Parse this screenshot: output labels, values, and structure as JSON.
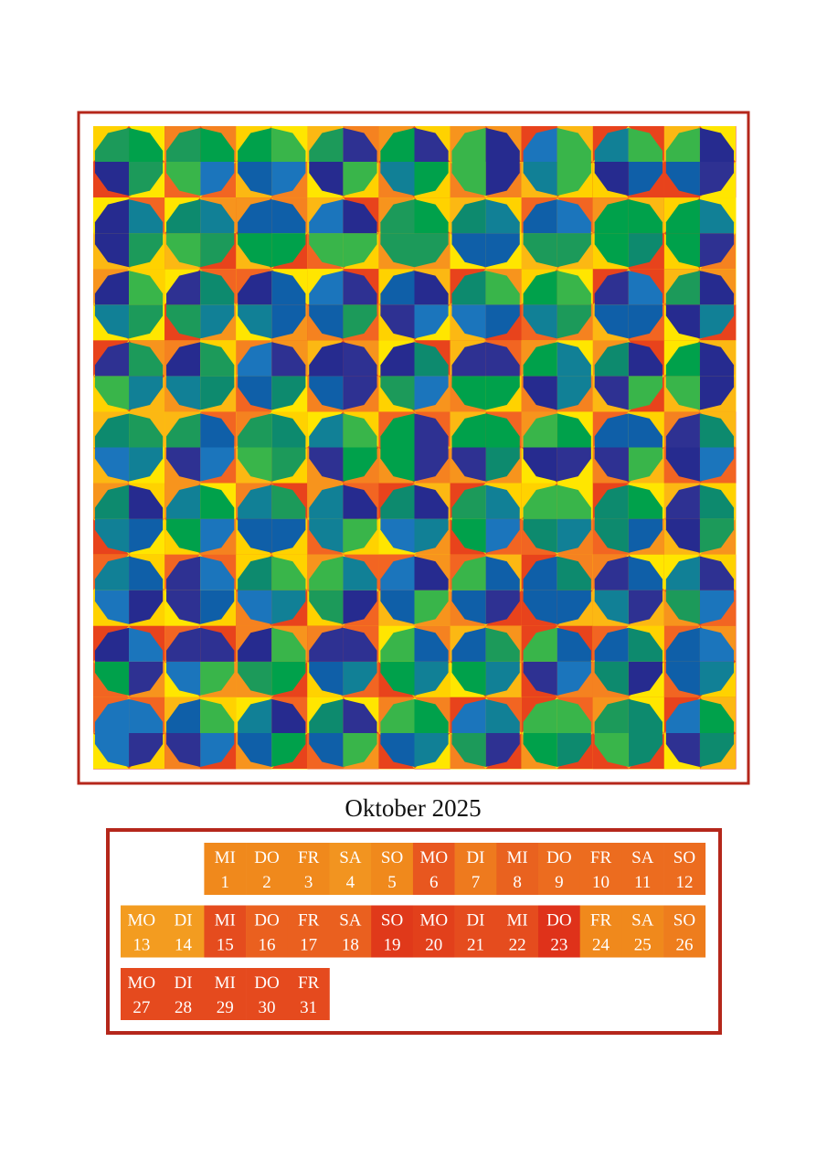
{
  "title": "Oktober 2025",
  "days": [
    {
      "weekday": "MI",
      "day": 1,
      "color": "#f0891c"
    },
    {
      "weekday": "DO",
      "day": 2,
      "color": "#f0891c"
    },
    {
      "weekday": "FR",
      "day": 3,
      "color": "#f0891c"
    },
    {
      "weekday": "SA",
      "day": 4,
      "color": "#f29420"
    },
    {
      "weekday": "SO",
      "day": 5,
      "color": "#f0891c"
    },
    {
      "weekday": "MO",
      "day": 6,
      "color": "#e8571f"
    },
    {
      "weekday": "DI",
      "day": 7,
      "color": "#ee7a1e"
    },
    {
      "weekday": "MI",
      "day": 8,
      "color": "#e9621f"
    },
    {
      "weekday": "DO",
      "day": 9,
      "color": "#ec6c1f"
    },
    {
      "weekday": "FR",
      "day": 10,
      "color": "#ec6c1f"
    },
    {
      "weekday": "SA",
      "day": 11,
      "color": "#ec6c1f"
    },
    {
      "weekday": "SO",
      "day": 12,
      "color": "#ec6c1f"
    },
    {
      "weekday": "MO",
      "day": 13,
      "color": "#f39c20"
    },
    {
      "weekday": "DI",
      "day": 14,
      "color": "#f39c20"
    },
    {
      "weekday": "MI",
      "day": 15,
      "color": "#e54c1e"
    },
    {
      "weekday": "DO",
      "day": 16,
      "color": "#ea601f"
    },
    {
      "weekday": "FR",
      "day": 17,
      "color": "#ea601f"
    },
    {
      "weekday": "SA",
      "day": 18,
      "color": "#ea601f"
    },
    {
      "weekday": "SO",
      "day": 19,
      "color": "#e0391a"
    },
    {
      "weekday": "MO",
      "day": 20,
      "color": "#e2401b"
    },
    {
      "weekday": "DI",
      "day": 21,
      "color": "#e54c1e"
    },
    {
      "weekday": "MI",
      "day": 22,
      "color": "#e54c1e"
    },
    {
      "weekday": "DO",
      "day": 23,
      "color": "#df321a"
    },
    {
      "weekday": "FR",
      "day": 24,
      "color": "#f0891c"
    },
    {
      "weekday": "SA",
      "day": 25,
      "color": "#f0891c"
    },
    {
      "weekday": "SO",
      "day": 26,
      "color": "#ee7d1d"
    },
    {
      "weekday": "MO",
      "day": 27,
      "color": "#e54a1e"
    },
    {
      "weekday": "DI",
      "day": 28,
      "color": "#e54a1e"
    },
    {
      "weekday": "MI",
      "day": 29,
      "color": "#e54a1e"
    },
    {
      "weekday": "DO",
      "day": 30,
      "color": "#e54a1e"
    },
    {
      "weekday": "FR",
      "day": 31,
      "color": "#e54a1e"
    }
  ]
}
